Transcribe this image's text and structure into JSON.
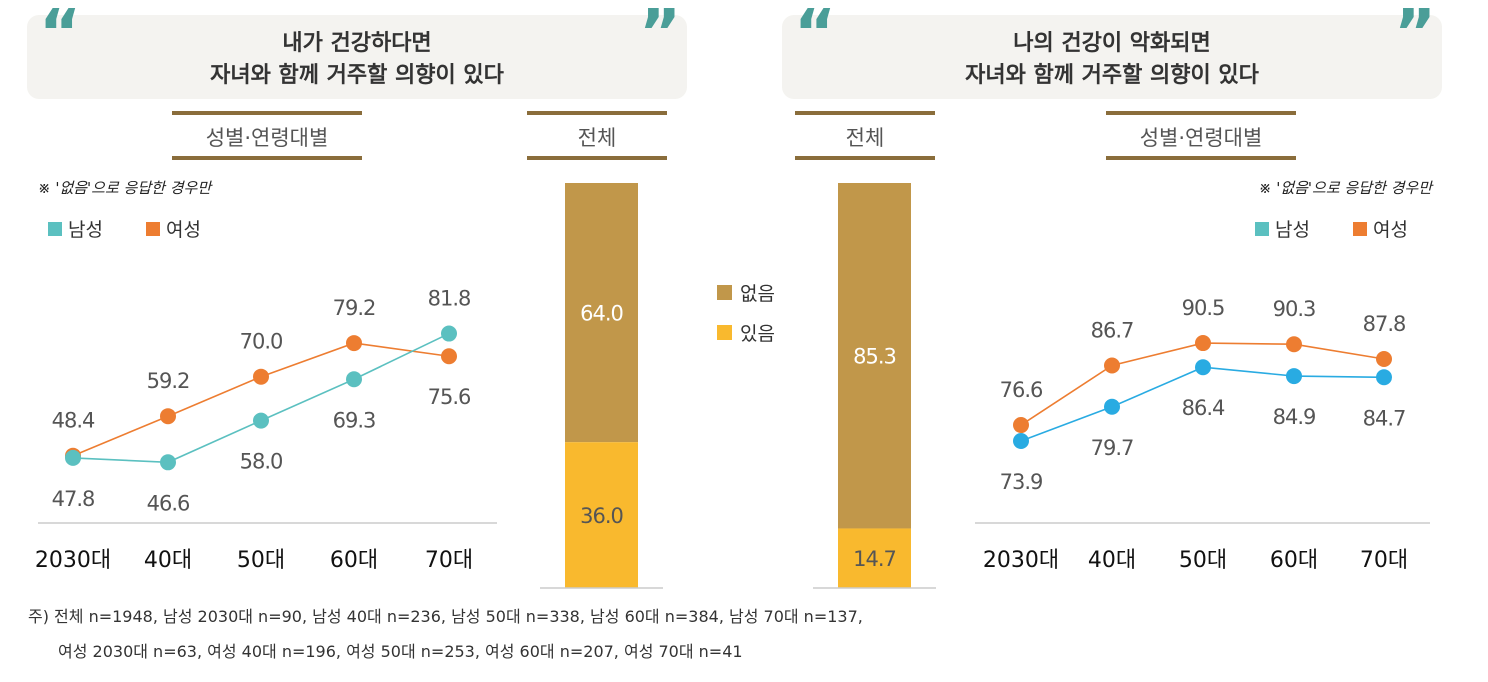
{
  "colors": {
    "male": "#5bc0c0",
    "female": "#ed7d31",
    "male_right": "#29abe2",
    "none": "#c1974a",
    "some": "#f9b92e",
    "header_bg": "#f4f3f0",
    "rule": "#8a6d3b",
    "quote": "#4a9e98"
  },
  "chart_data": [
    {
      "type": "line",
      "title": "내가 건강하다면\n자녀와 함께 거주할 의향이 있다",
      "subtitle": "성별·연령대별",
      "note": "※ '없음'으로 응답한 경우만",
      "categories": [
        "2030대",
        "40대",
        "50대",
        "60대",
        "70대"
      ],
      "series": [
        {
          "name": "남성",
          "values": [
            47.8,
            46.6,
            58.0,
            69.3,
            81.8
          ]
        },
        {
          "name": "여성",
          "values": [
            48.4,
            59.2,
            70.0,
            79.2,
            75.6
          ]
        }
      ],
      "ylim": [
        30,
        100
      ],
      "grid": false,
      "legend": "top-left"
    },
    {
      "type": "bar",
      "stacked": true,
      "subtitle": "전체",
      "categories": [
        "전체"
      ],
      "series": [
        {
          "name": "없음",
          "values": [
            64.0
          ]
        },
        {
          "name": "있음",
          "values": [
            36.0
          ]
        }
      ],
      "ylim": [
        0,
        100
      ]
    },
    {
      "type": "bar",
      "stacked": true,
      "subtitle": "전체",
      "categories": [
        "전체"
      ],
      "series": [
        {
          "name": "없음",
          "values": [
            85.3
          ]
        },
        {
          "name": "있음",
          "values": [
            14.7
          ]
        }
      ],
      "ylim": [
        0,
        100
      ]
    },
    {
      "type": "line",
      "title": "나의 건강이 악화되면\n자녀와 함께 거주할 의향이 있다",
      "subtitle": "성별·연령대별",
      "note": "※ '없음'으로 응답한 경우만",
      "categories": [
        "2030대",
        "40대",
        "50대",
        "60대",
        "70대"
      ],
      "series": [
        {
          "name": "남성",
          "values": [
            73.9,
            79.7,
            86.4,
            84.9,
            84.7
          ]
        },
        {
          "name": "여성",
          "values": [
            76.6,
            86.7,
            90.5,
            90.3,
            87.8
          ]
        }
      ],
      "ylim": [
        60,
        100
      ],
      "grid": false,
      "legend": "top-right"
    }
  ],
  "legend_center": [
    "없음",
    "있음"
  ],
  "footnote": [
    "주) 전체 n=1948, 남성 2030대 n=90, 남성 40대 n=236, 남성 50대 n=338, 남성 60대 n=384, 남성 70대 n=137,",
    "여성 2030대 n=63, 여성 40대 n=196, 여성 50대 n=253, 여성 60대 n=207, 여성 70대 n=41"
  ]
}
